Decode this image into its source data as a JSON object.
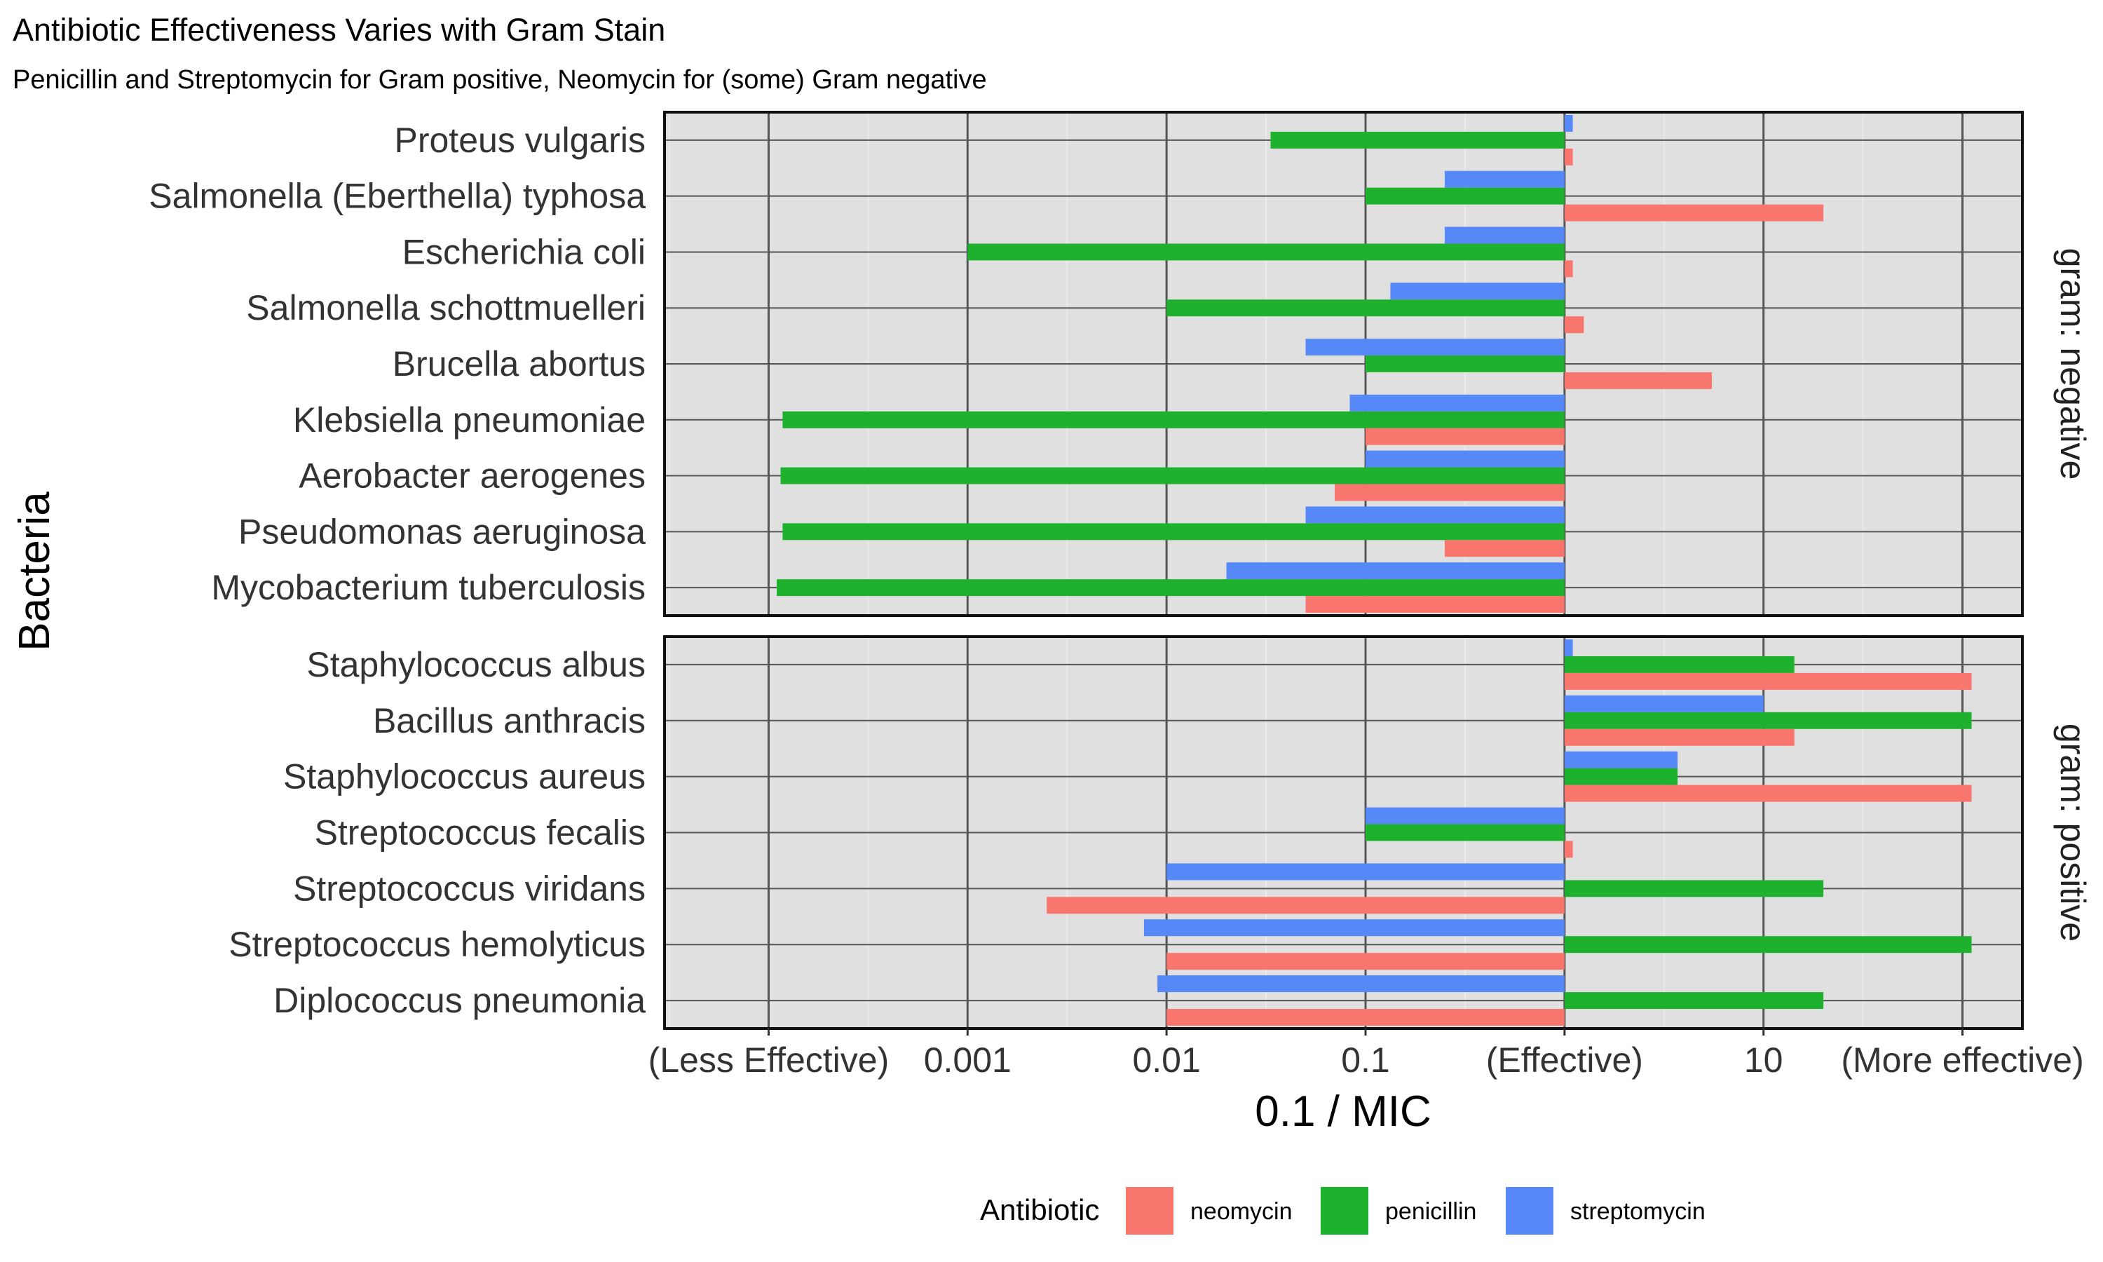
{
  "chart_data": {
    "type": "bar",
    "orientation": "horizontal",
    "title": "Antibiotic Effectiveness Varies with Gram Stain",
    "subtitle": "Penicillin and Streptomycin for Gram positive, Neomycin for (some) Gram negative",
    "xlabel": "0.1 / MIC",
    "ylabel": "Bacteria",
    "x_scale": "log10",
    "x_baseline": 1,
    "xlim": [
      3e-05,
      200
    ],
    "x_ticks": [
      {
        "value": 0.0001,
        "label": "(Less Effective)"
      },
      {
        "value": 0.001,
        "label": "0.001"
      },
      {
        "value": 0.01,
        "label": "0.01"
      },
      {
        "value": 0.1,
        "label": "0.1"
      },
      {
        "value": 1,
        "label": "(Effective)"
      },
      {
        "value": 10,
        "label": "10"
      },
      {
        "value": 100,
        "label": "(More effective)"
      }
    ],
    "grid": true,
    "legend": {
      "title": "Antibiotic",
      "position": "bottom",
      "entries": [
        {
          "name": "neomycin",
          "color": "#F8766D"
        },
        {
          "name": "penicillin",
          "color": "#1EB12E"
        },
        {
          "name": "streptomycin",
          "color": "#5688F7"
        }
      ]
    },
    "facets": [
      {
        "label": "gram: negative",
        "categories": [
          "Proteus vulgaris",
          "Salmonella (Eberthella) typhosa",
          "Escherichia coli",
          "Salmonella schottmuelleri",
          "Brucella abortus",
          "Klebsiella pneumoniae",
          "Aerobacter aerogenes",
          "Pseudomonas aeruginosa",
          "Mycobacterium tuberculosis"
        ],
        "series": [
          {
            "name": "neomycin",
            "values": [
              1.1,
              20,
              1.1,
              1.25,
              5.5,
              0.1,
              0.07,
              0.25,
              0.05
            ]
          },
          {
            "name": "penicillin",
            "values": [
              0.03333,
              0.1,
              0.001,
              0.01,
              0.1,
              0.0001176,
              0.0001149,
              0.0001176,
              0.0001099
            ]
          },
          {
            "name": "streptomycin",
            "values": [
              1.1,
              0.25,
              0.25,
              0.1333,
              0.05,
              0.0833,
              0.1,
              0.05,
              0.02
            ]
          }
        ]
      },
      {
        "label": "gram: positive",
        "categories": [
          "Staphylococcus albus",
          "Bacillus anthracis",
          "Staphylococcus aureus",
          "Streptococcus fecalis",
          "Streptococcus viridans",
          "Streptococcus hemolyticus",
          "Diplococcus pneumonia"
        ],
        "series": [
          {
            "name": "neomycin",
            "values": [
              111.1,
              14.29,
              111.1,
              1.1,
              0.0025,
              0.01,
              0.01
            ]
          },
          {
            "name": "penicillin",
            "values": [
              14.29,
              111.1,
              3.7,
              0.1,
              20,
              111.1,
              20
            ]
          },
          {
            "name": "streptomycin",
            "values": [
              1.1,
              10,
              3.7,
              0.1,
              0.01,
              0.0077,
              0.009
            ]
          }
        ]
      }
    ]
  }
}
